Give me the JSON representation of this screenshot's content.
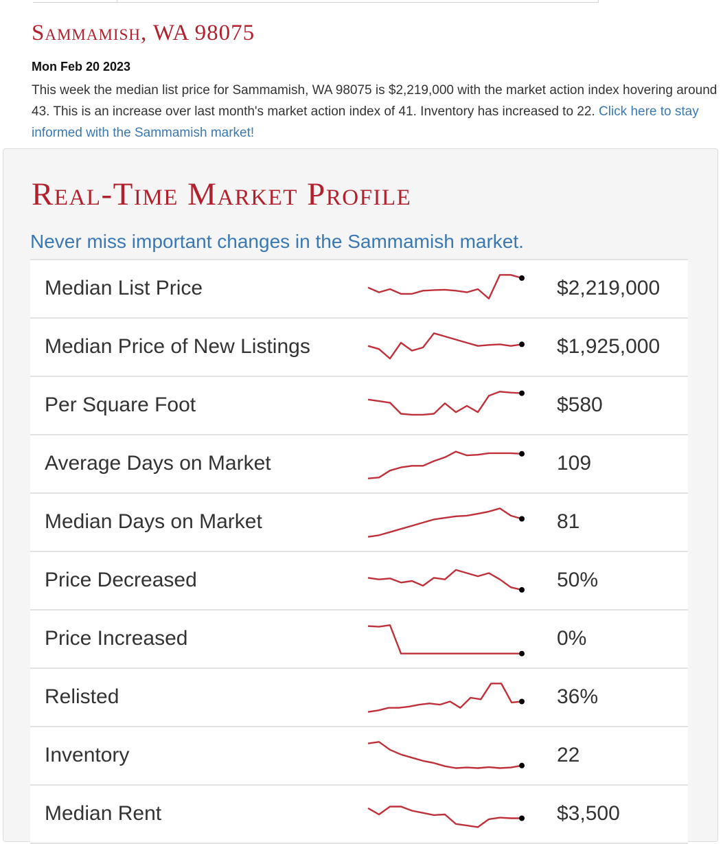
{
  "header": {
    "city_title": "Sammamish, WA 98075",
    "date": "Mon Feb 20 2023",
    "summary_text": "This week the median list price for Sammamish, WA 98075 is $2,219,000 with the market action index hovering around 43. This is an increase over last month's market action index of 41. Inventory has increased to 22.",
    "summary_link": "Click here to stay informed with the Sammamish market!"
  },
  "profile": {
    "title": "Real-Time Market Profile",
    "subtitle": "Never miss important changes in the Sammamish market.",
    "colors": {
      "line": "#c0303b",
      "title": "#b2202e",
      "link": "#3a78b4",
      "end_dot": "#000000"
    },
    "rows": [
      {
        "label": "Median List Price",
        "value": "$2,219,000",
        "spark": [
          0.55,
          0.4,
          0.5,
          0.35,
          0.35,
          0.45,
          0.47,
          0.48,
          0.45,
          0.4,
          0.5,
          0.2,
          0.95,
          0.95,
          0.85
        ]
      },
      {
        "label": "Median Price of New Listings",
        "value": "$1,925,000",
        "spark": [
          0.55,
          0.45,
          0.15,
          0.65,
          0.4,
          0.5,
          0.95,
          0.85,
          0.75,
          0.65,
          0.55,
          0.58,
          0.6,
          0.55,
          0.6
        ]
      },
      {
        "label": "Per Square Foot",
        "value": "$580",
        "spark": [
          0.7,
          0.65,
          0.6,
          0.25,
          0.22,
          0.22,
          0.25,
          0.58,
          0.3,
          0.5,
          0.3,
          0.82,
          0.95,
          0.92,
          0.9
        ]
      },
      {
        "label": "Average Days on Market",
        "value": "109",
        "spark": [
          0.05,
          0.08,
          0.3,
          0.4,
          0.45,
          0.45,
          0.6,
          0.72,
          0.9,
          0.78,
          0.8,
          0.85,
          0.85,
          0.85,
          0.83
        ]
      },
      {
        "label": "Median Days on Market",
        "value": "81",
        "spark": [
          0.05,
          0.1,
          0.2,
          0.3,
          0.4,
          0.5,
          0.6,
          0.65,
          0.7,
          0.72,
          0.78,
          0.85,
          0.95,
          0.72,
          0.62
        ]
      },
      {
        "label": "Price Decreased",
        "value": "50%",
        "spark": [
          0.6,
          0.55,
          0.58,
          0.45,
          0.5,
          0.35,
          0.6,
          0.55,
          0.85,
          0.75,
          0.65,
          0.75,
          0.55,
          0.3,
          0.22
        ]
      },
      {
        "label": "Price Increased",
        "value": "0%",
        "spark": [
          0.92,
          0.9,
          0.95,
          0.05,
          0.05,
          0.05,
          0.05,
          0.05,
          0.05,
          0.05,
          0.05,
          0.05,
          0.05,
          0.05,
          0.05
        ]
      },
      {
        "label": "Relisted",
        "value": "36%",
        "spark": [
          0.05,
          0.1,
          0.18,
          0.18,
          0.22,
          0.28,
          0.32,
          0.28,
          0.38,
          0.18,
          0.5,
          0.45,
          0.95,
          0.95,
          0.35,
          0.38
        ]
      },
      {
        "label": "Inventory",
        "value": "22",
        "spark": [
          0.9,
          0.95,
          0.7,
          0.55,
          0.45,
          0.35,
          0.28,
          0.18,
          0.12,
          0.14,
          0.12,
          0.15,
          0.12,
          0.14,
          0.2
        ]
      },
      {
        "label": "Median Rent",
        "value": "$3,500",
        "spark": [
          0.7,
          0.5,
          0.75,
          0.75,
          0.62,
          0.55,
          0.48,
          0.5,
          0.2,
          0.15,
          0.1,
          0.35,
          0.4,
          0.38,
          0.38
        ]
      }
    ]
  }
}
